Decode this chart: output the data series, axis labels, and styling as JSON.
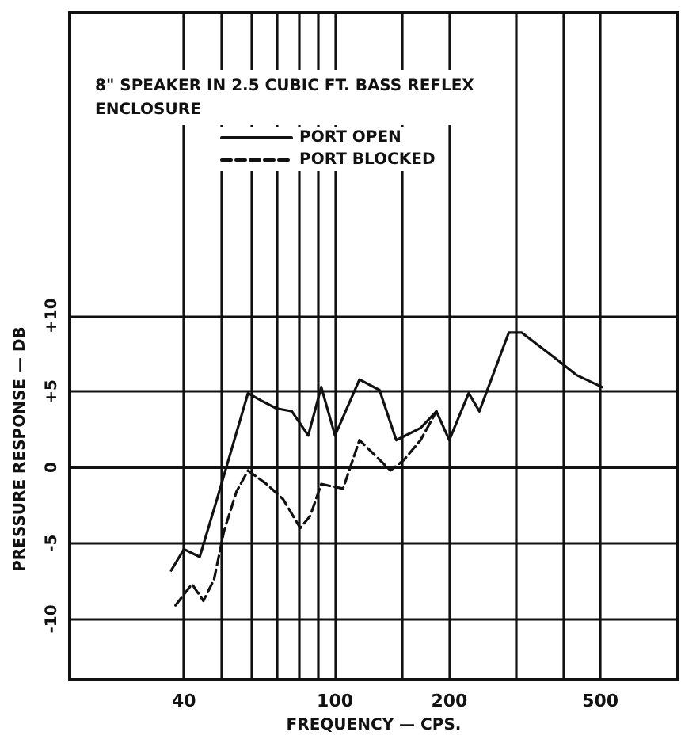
{
  "chart_data": {
    "type": "line",
    "title": "8\" SPEAKER IN 2.5 CUBIC FT. BASS REFLEX\nENCLOSURE",
    "xlabel": "FREQUENCY — CPS.",
    "ylabel": "PRESSURE RESPONSE — DB",
    "log": "x",
    "xlim": [
      20,
      800
    ],
    "xticks": [
      40,
      {
        "value": 50,
        "label": null
      },
      {
        "value": 60,
        "label": null
      },
      {
        "value": 70,
        "label": null
      },
      {
        "value": 80,
        "label": null
      },
      {
        "value": 90,
        "label": null
      },
      100,
      {
        "value": 150,
        "label": null
      },
      200,
      {
        "value": 300,
        "label": null
      },
      {
        "value": 400,
        "label": null
      },
      500
    ],
    "ylim": [
      -14,
      30
    ],
    "yticks": [
      -10,
      -5,
      0,
      {
        "value": 5,
        "label": "+5"
      },
      {
        "value": 10,
        "label": "+10"
      }
    ],
    "grid": true,
    "legend": "top",
    "marker": "none",
    "series": [
      {
        "name": "PORT OPEN",
        "color": "#111111",
        "line_style": "solid",
        "x": [
          37,
          40,
          44,
          49,
          59,
          64,
          70,
          77,
          85,
          92,
          100,
          116,
          131,
          145,
          168,
          185,
          200,
          225,
          240,
          287,
          310,
          385,
          432,
          505
        ],
        "values": [
          -6.8,
          -5.4,
          -5.9,
          -2,
          4.9,
          4.4,
          3.9,
          3.7,
          2.1,
          5.3,
          2.1,
          5.8,
          5.1,
          1.8,
          2.6,
          3.7,
          1.8,
          4.9,
          3.7,
          8.9,
          8.9,
          7.1,
          6.1,
          5.3
        ]
      },
      {
        "name": "PORT BLOCKED",
        "color": "#111111",
        "line_style": "dashed",
        "x": [
          38,
          42,
          45,
          48,
          51,
          55,
          59,
          66,
          73,
          81,
          86,
          92,
          105,
          116,
          140,
          152,
          168,
          185
        ],
        "values": [
          -9.1,
          -7.7,
          -8.8,
          -7.4,
          -4.2,
          -1.6,
          -0.2,
          -1.1,
          -2.1,
          -4,
          -3.2,
          -1.1,
          -1.4,
          1.8,
          -0.2,
          0.5,
          1.8,
          3.7
        ]
      }
    ]
  }
}
